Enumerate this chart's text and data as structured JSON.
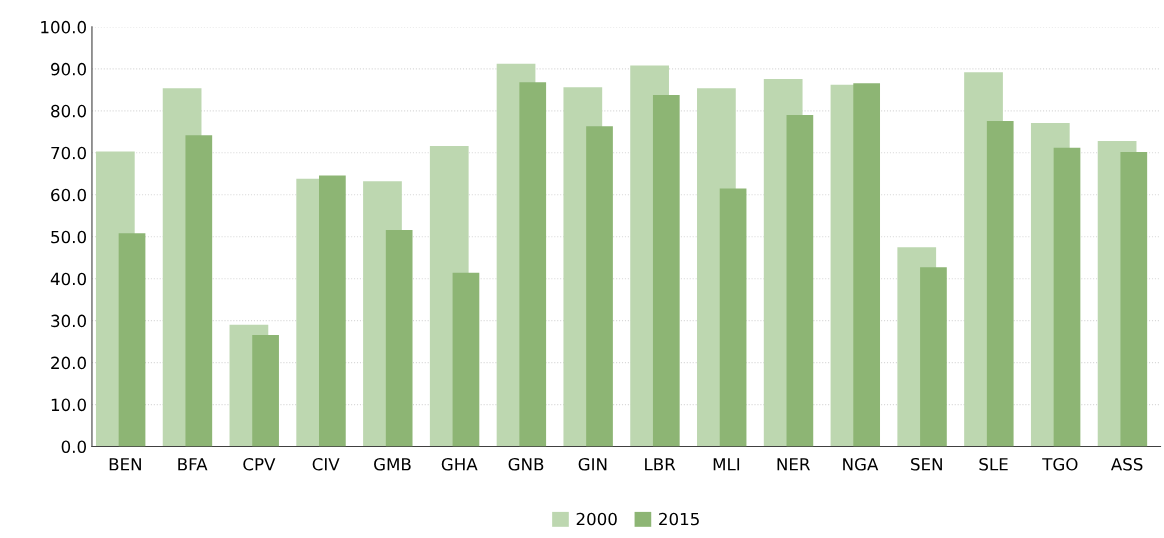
{
  "chart_data": {
    "type": "bar",
    "categories": [
      "BEN",
      "BFA",
      "CPV",
      "CIV",
      "GMB",
      "GHA",
      "GNB",
      "GIN",
      "LBR",
      "MLI",
      "NER",
      "NGA",
      "SEN",
      "SLE",
      "TGO",
      "ASS"
    ],
    "series": [
      {
        "name": "2000",
        "color": "#bdd7b0",
        "values": [
          70.3,
          85.4,
          29.0,
          63.8,
          63.2,
          71.6,
          91.2,
          85.6,
          90.8,
          85.4,
          87.6,
          86.2,
          47.5,
          89.2,
          77.1,
          72.8
        ]
      },
      {
        "name": "2015",
        "color": "#8db574",
        "values": [
          50.8,
          74.2,
          26.6,
          64.6,
          51.6,
          41.4,
          86.8,
          76.3,
          83.8,
          61.5,
          79.0,
          86.6,
          42.7,
          77.6,
          71.2,
          70.2
        ]
      }
    ],
    "ylim": [
      0,
      100
    ],
    "yticks": [
      {
        "value": 0,
        "label": "0.0"
      },
      {
        "value": 10,
        "label": "10.0"
      },
      {
        "value": 20,
        "label": "20.0"
      },
      {
        "value": 30,
        "label": "30.0"
      },
      {
        "value": 40,
        "label": "40.0"
      },
      {
        "value": 50,
        "label": "50.0"
      },
      {
        "value": 60,
        "label": "60.0"
      },
      {
        "value": 70,
        "label": "70.0"
      },
      {
        "value": 80,
        "label": "80.0"
      },
      {
        "value": 90,
        "label": "90.0"
      },
      {
        "value": 100,
        "label": "100.0"
      }
    ],
    "grid": "y",
    "legend": "bottom"
  }
}
